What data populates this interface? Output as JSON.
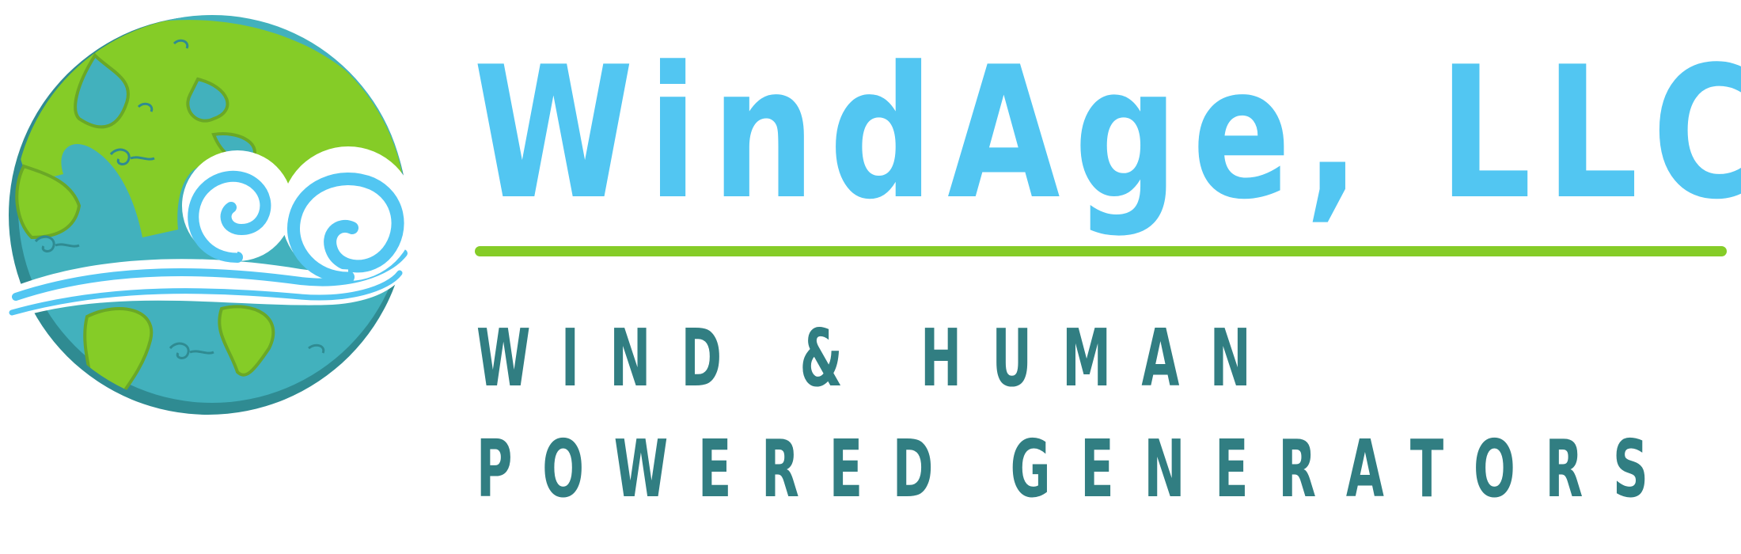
{
  "brand": {
    "company_name": "WindAge, LLC",
    "tagline_line1": "WIND & HUMAN",
    "tagline_line2": "POWERED GENERATORS"
  },
  "emblem": {
    "icon": "globe-with-wind-swirl-icon"
  },
  "colors": {
    "title_blue": "#52c6f2",
    "accent_green": "#85cc27",
    "tagline_teal": "#317e82",
    "ocean": "#42b1bd",
    "ocean_shadow": "#2f8b92",
    "land": "#85cc27",
    "wind_white": "#ffffff",
    "wind_blue": "#52c6f2"
  }
}
